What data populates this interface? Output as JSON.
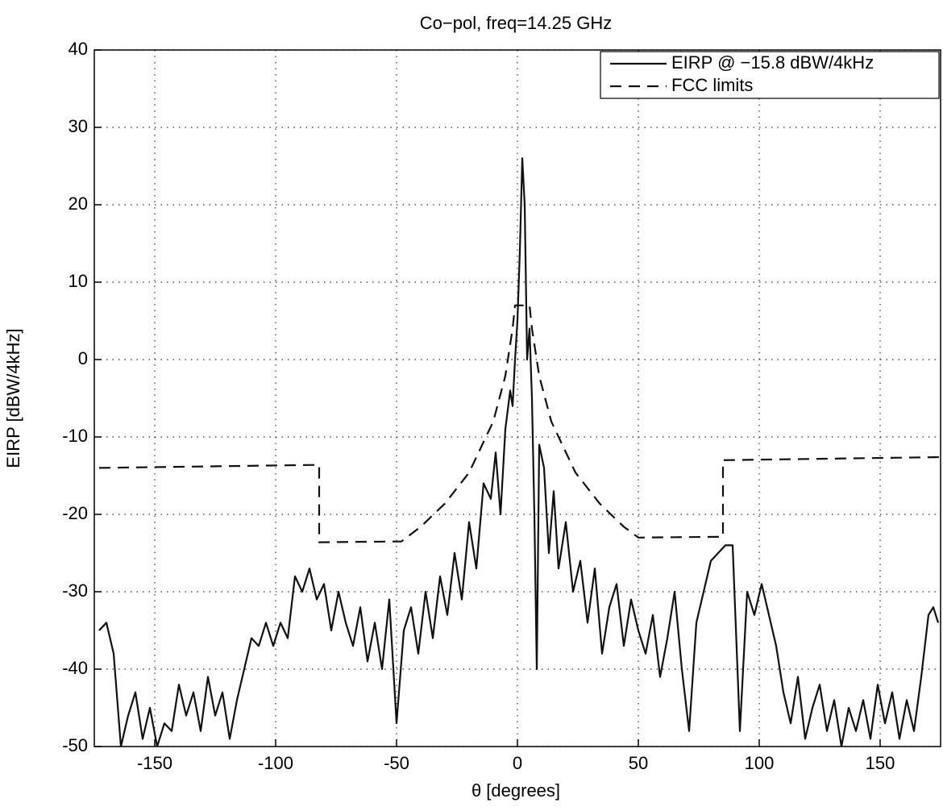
{
  "chart_data": {
    "type": "line",
    "title": "Co−pol, freq=14.25 GHz",
    "x_label": "θ  [degrees]",
    "y_label": "EIRP [dBW/4kHz]",
    "xlim": [
      -175,
      175
    ],
    "ylim": [
      -50,
      40
    ],
    "xticks": [
      -150,
      -100,
      -50,
      0,
      50,
      100,
      150
    ],
    "yticks": [
      -50,
      -40,
      -30,
      -20,
      -10,
      0,
      10,
      20,
      30,
      40
    ],
    "grid": true,
    "legend": "upper right",
    "series": [
      {
        "name": "EIRP @ −15.8 dBW/4kHz",
        "color": "#111111",
        "dash": "solid",
        "x": [
          -173,
          -170,
          -167,
          -164,
          -161,
          -158,
          -155,
          -152,
          -149,
          -146,
          -143,
          -140,
          -137,
          -134,
          -131,
          -128,
          -125,
          -122,
          -119,
          -116,
          -113,
          -110,
          -107,
          -104,
          -101,
          -98,
          -95,
          -92,
          -89,
          -86,
          -83,
          -80,
          -77,
          -74,
          -71,
          -68,
          -65,
          -62,
          -59,
          -56,
          -53,
          -50,
          -47,
          -44,
          -41,
          -38,
          -35,
          -32,
          -29,
          -26,
          -23,
          -20,
          -17,
          -14,
          -11,
          -9,
          -7,
          -5,
          -3,
          -2,
          -1,
          0,
          1,
          2,
          3,
          4,
          5,
          6,
          7,
          8,
          9,
          11,
          13,
          15,
          17,
          20,
          23,
          26,
          29,
          32,
          35,
          38,
          41,
          44,
          47,
          50,
          53,
          56,
          59,
          62,
          65,
          68,
          71,
          74,
          77,
          80,
          83,
          86,
          89,
          92,
          95,
          98,
          101,
          104,
          107,
          110,
          113,
          116,
          119,
          122,
          125,
          128,
          131,
          134,
          137,
          140,
          143,
          146,
          149,
          152,
          155,
          158,
          161,
          164,
          167,
          170,
          172,
          174
        ],
        "values": [
          -35,
          -34,
          -38,
          -50,
          -46,
          -43,
          -49,
          -45,
          -50,
          -47,
          -48,
          -42,
          -46,
          -43,
          -48,
          -41,
          -46,
          -43,
          -49,
          -44,
          -40,
          -36,
          -37,
          -34,
          -37,
          -34,
          -36,
          -28,
          -30,
          -27,
          -31,
          -29,
          -35,
          -30,
          -34,
          -37,
          -32,
          -39,
          -34,
          -40,
          -31,
          -47,
          -35,
          -32,
          -38,
          -30,
          -36,
          -28,
          -33,
          -25,
          -31,
          -21,
          -27,
          -16,
          -18,
          -12,
          -20,
          -9,
          -4,
          -6,
          0,
          5,
          14,
          26,
          20,
          0,
          4,
          -5,
          -20,
          -40,
          -11,
          -14,
          -25,
          -17,
          -27,
          -21,
          -30,
          -26,
          -34,
          -27,
          -38,
          -32,
          -29,
          -37,
          -31,
          -35,
          -38,
          -33,
          -41,
          -36,
          -30,
          -40,
          -48,
          -34,
          -30,
          -26,
          -25,
          -24,
          -24,
          -48,
          -30,
          -33,
          -29,
          -33,
          -37,
          -43,
          -47,
          -41,
          -49,
          -45,
          -42,
          -48,
          -44,
          -50,
          -45,
          -48,
          -44,
          -49,
          -42,
          -47,
          -43,
          -49,
          -44,
          -48,
          -41,
          -33,
          -32,
          -34
        ]
      },
      {
        "name": "FCC limits",
        "color": "#111111",
        "dash": "dashed",
        "x": [
          -173,
          -82,
          -82,
          -48,
          -40,
          -30,
          -20,
          -10,
          -5,
          -2,
          -1,
          5,
          6,
          9,
          14,
          24,
          34,
          44,
          50,
          85,
          85,
          175
        ],
        "values": [
          -14,
          -13.6,
          -23.6,
          -23.5,
          -21.6,
          -18.6,
          -14.6,
          -8,
          -2.1,
          4,
          7,
          7,
          4,
          -2.1,
          -8,
          -14.6,
          -18.6,
          -21.6,
          -23,
          -22.9,
          -13,
          -12.6
        ]
      }
    ]
  }
}
